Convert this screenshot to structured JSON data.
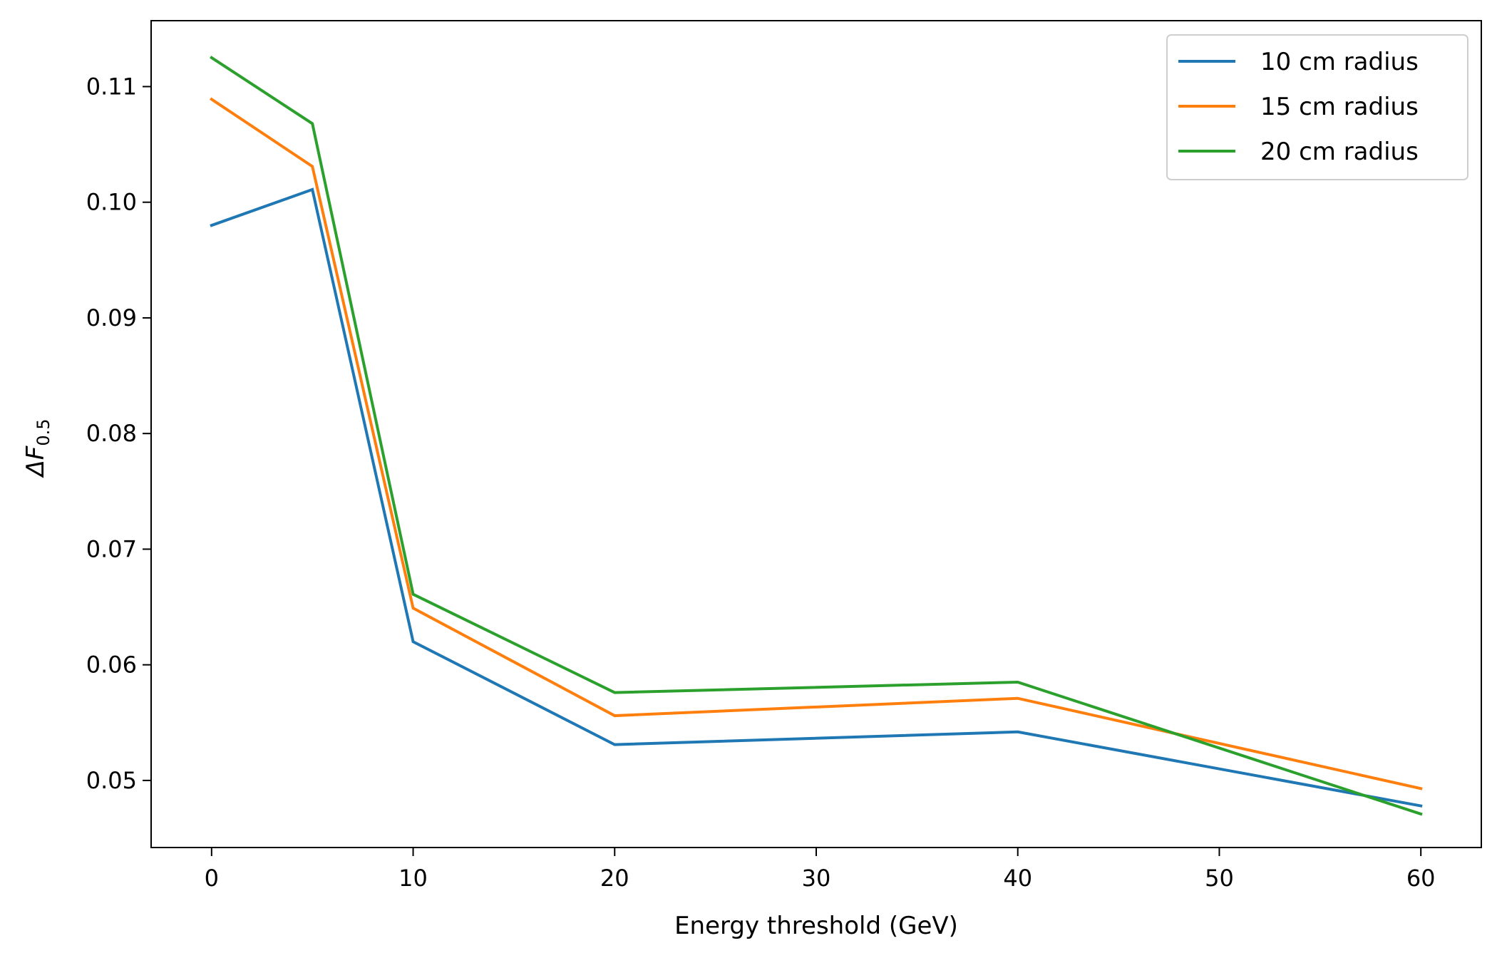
{
  "chart_data": {
    "type": "line",
    "title": "",
    "xlabel": "Energy threshold (GeV)",
    "ylabel": {
      "main": "ΔF",
      "subscript": "0.5"
    },
    "xlim": [
      -3,
      63
    ],
    "ylim": [
      0.0442,
      0.1157
    ],
    "xticks": [
      0,
      10,
      20,
      30,
      40,
      50,
      60
    ],
    "yticks": [
      0.05,
      0.06,
      0.07,
      0.08,
      0.09,
      0.1,
      0.11
    ],
    "ytick_labels": [
      "0.05",
      "0.06",
      "0.07",
      "0.08",
      "0.09",
      "0.10",
      "0.11"
    ],
    "grid": false,
    "legend_position": "top-right",
    "x": [
      0,
      5,
      10,
      20,
      40,
      60
    ],
    "series": [
      {
        "name": "10 cm radius",
        "color": "#1f77b4",
        "values": [
          0.098,
          0.1011,
          0.062,
          0.0531,
          0.0542,
          0.0478
        ]
      },
      {
        "name": "15 cm radius",
        "color": "#ff7f0e",
        "values": [
          0.1089,
          0.1031,
          0.0649,
          0.0556,
          0.0571,
          0.0493
        ]
      },
      {
        "name": "20 cm radius",
        "color": "#2ca02c",
        "values": [
          0.1125,
          0.1068,
          0.0661,
          0.0576,
          0.0585,
          0.0471
        ]
      }
    ]
  }
}
